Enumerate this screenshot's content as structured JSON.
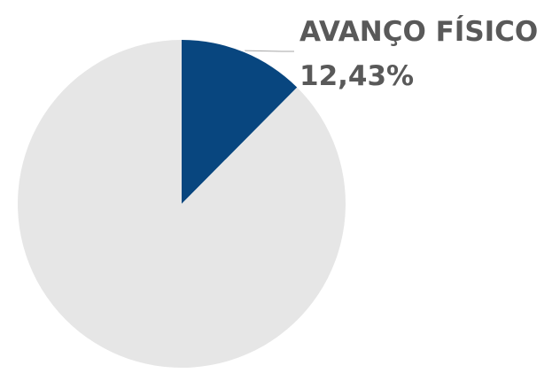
{
  "chart_data": {
    "type": "pie",
    "slices": [
      {
        "label": "AVANÇO FÍSICO",
        "value": 12.43,
        "color": "#08467f"
      },
      {
        "label": "",
        "value": 87.57,
        "color": "#e6e6e6"
      }
    ],
    "data_label": {
      "name": "AVANÇO FÍSICO",
      "value_text": "12,43%"
    },
    "start_angle_deg": 0,
    "direction": "clockwise",
    "leader_line": true,
    "legend": "none"
  }
}
